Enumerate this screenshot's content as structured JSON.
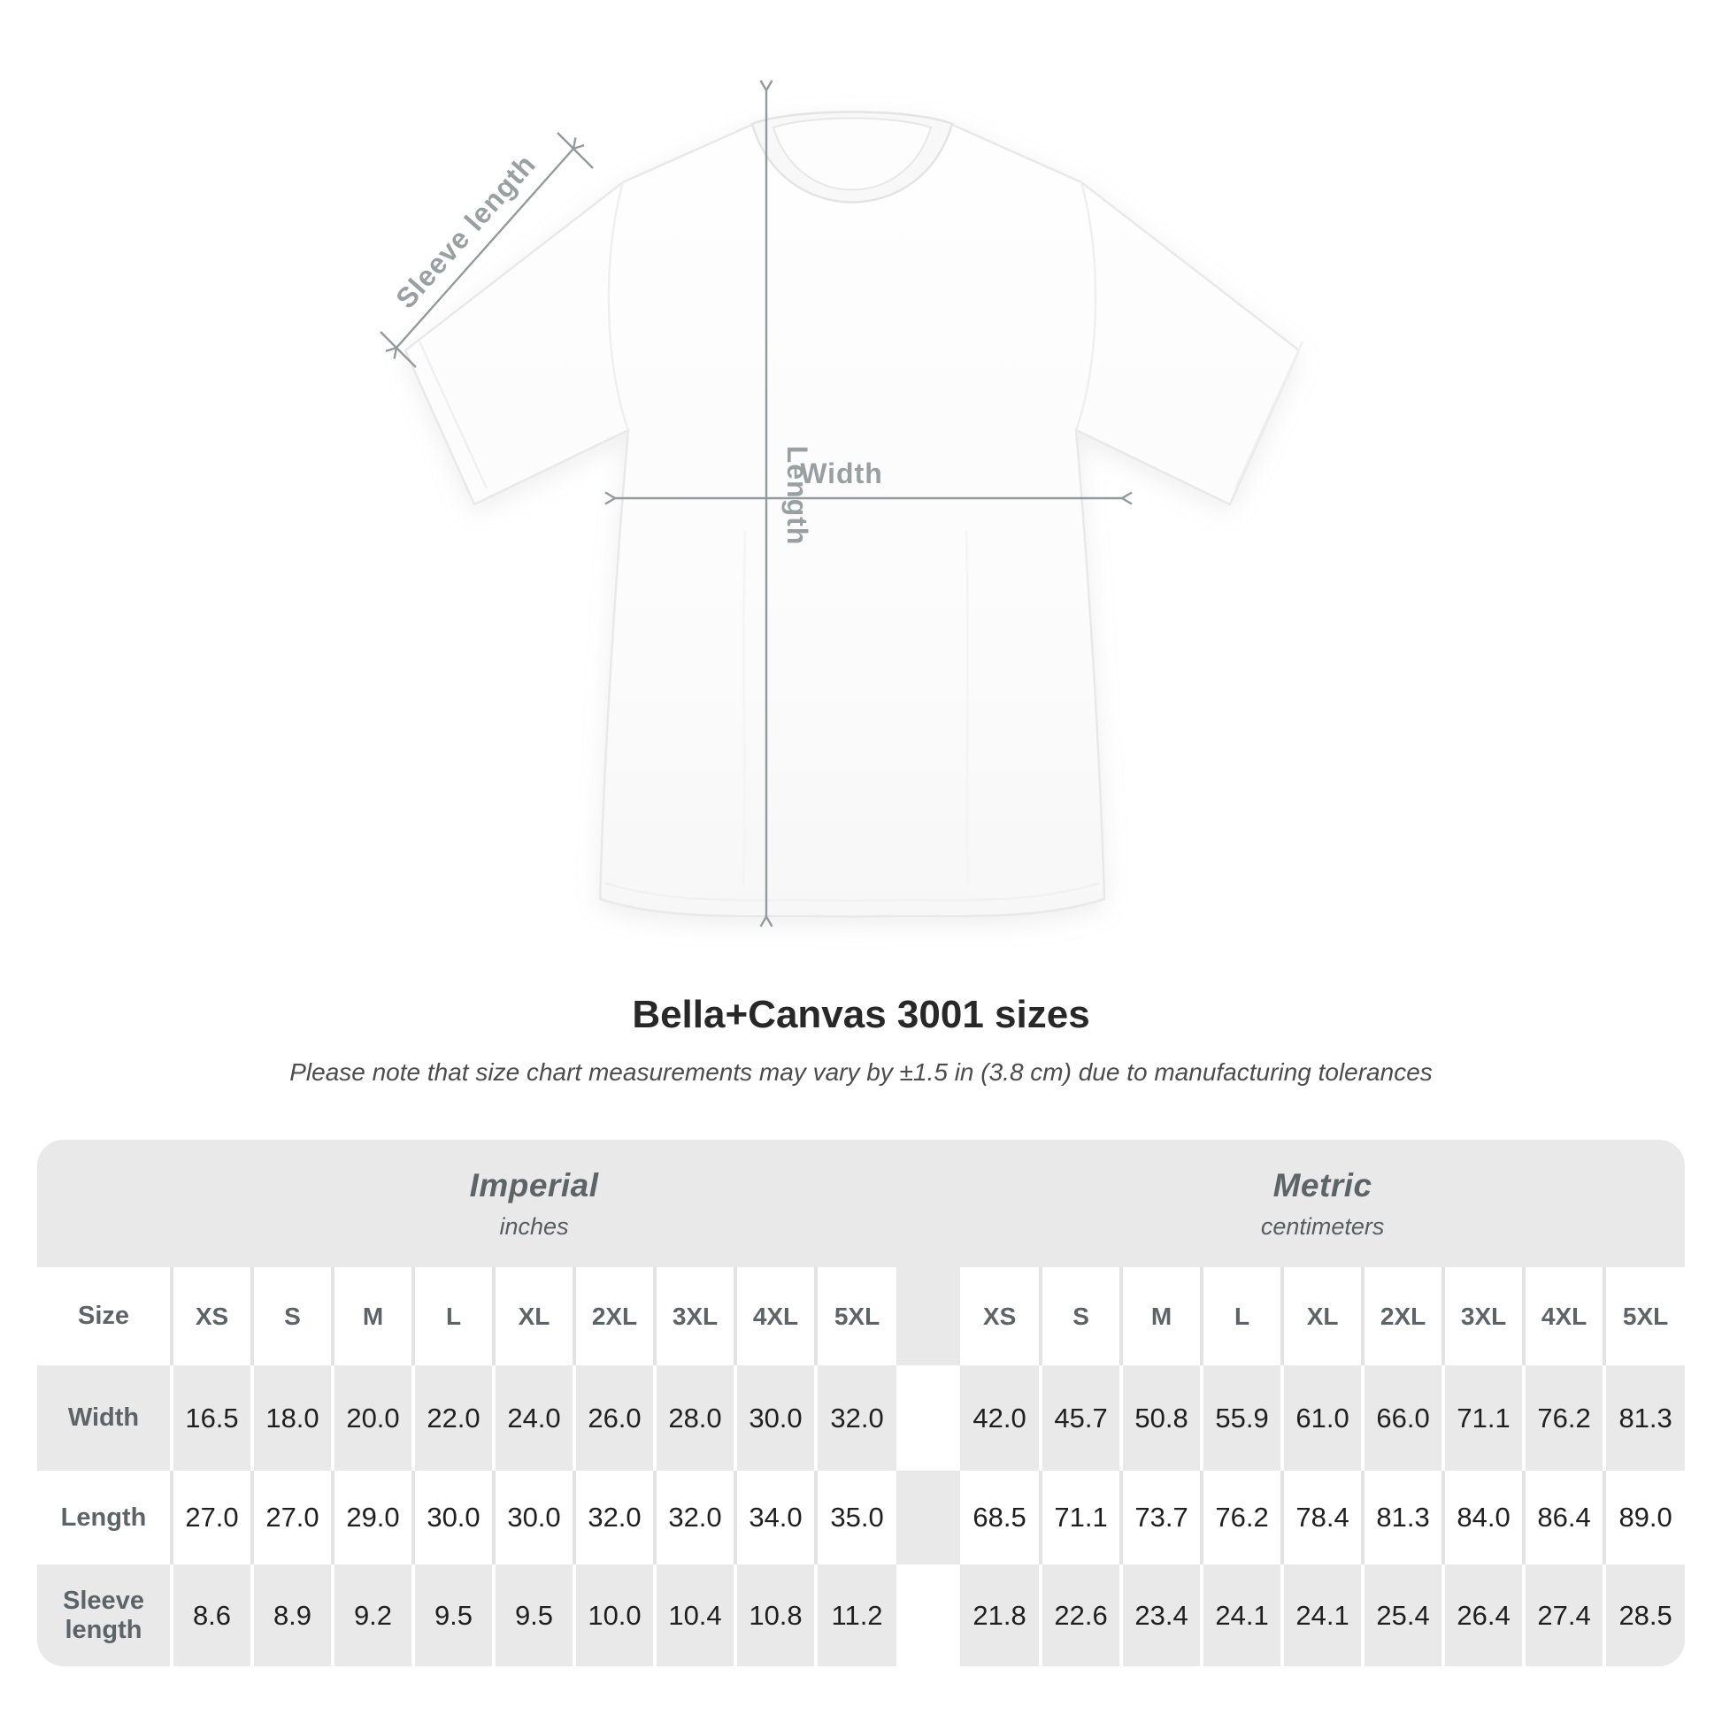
{
  "diagram": {
    "sleeve_label": "Sleeve length",
    "length_label": "Length",
    "width_label": "Width"
  },
  "title": "Bella+Canvas 3001 sizes",
  "subtitle": "Please note that size chart measurements may vary by ±1.5 in (3.8 cm) due to manufacturing tolerances",
  "chart_data": {
    "type": "table",
    "title": "Bella+Canvas 3001 sizes",
    "note": "Please note that size chart measurements may vary by ±1.5 in (3.8 cm) due to manufacturing tolerances",
    "groups": [
      {
        "label": "Imperial",
        "unit": "inches"
      },
      {
        "label": "Metric",
        "unit": "centimeters"
      }
    ],
    "size_header": "Size",
    "sizes": [
      "XS",
      "S",
      "M",
      "L",
      "XL",
      "2XL",
      "3XL",
      "4XL",
      "5XL"
    ],
    "rows": [
      {
        "label": "Width",
        "imperial": [
          "16.5",
          "18.0",
          "20.0",
          "22.0",
          "24.0",
          "26.0",
          "28.0",
          "30.0",
          "32.0"
        ],
        "metric": [
          "42.0",
          "45.7",
          "50.8",
          "55.9",
          "61.0",
          "66.0",
          "71.1",
          "76.2",
          "81.3"
        ]
      },
      {
        "label": "Length",
        "imperial": [
          "27.0",
          "27.0",
          "29.0",
          "30.0",
          "30.0",
          "32.0",
          "32.0",
          "34.0",
          "35.0"
        ],
        "metric": [
          "68.5",
          "71.1",
          "73.7",
          "76.2",
          "78.4",
          "81.3",
          "84.0",
          "86.4",
          "89.0"
        ]
      },
      {
        "label": "Sleeve length",
        "imperial": [
          "8.6",
          "8.9",
          "9.2",
          "9.5",
          "9.5",
          "10.0",
          "10.4",
          "10.8",
          "11.2"
        ],
        "metric": [
          "21.8",
          "22.6",
          "23.4",
          "24.1",
          "24.1",
          "25.4",
          "26.4",
          "27.4",
          "28.5"
        ]
      }
    ]
  },
  "colors": {
    "table_band": "#e9e9e9",
    "light_row": "#ffffff",
    "value_text": "#1f1f1f",
    "label_text": "#5d6467",
    "annotation_gray": "#9aa0a2",
    "arrow_gray": "#939a9c",
    "title_text": "#282828"
  }
}
